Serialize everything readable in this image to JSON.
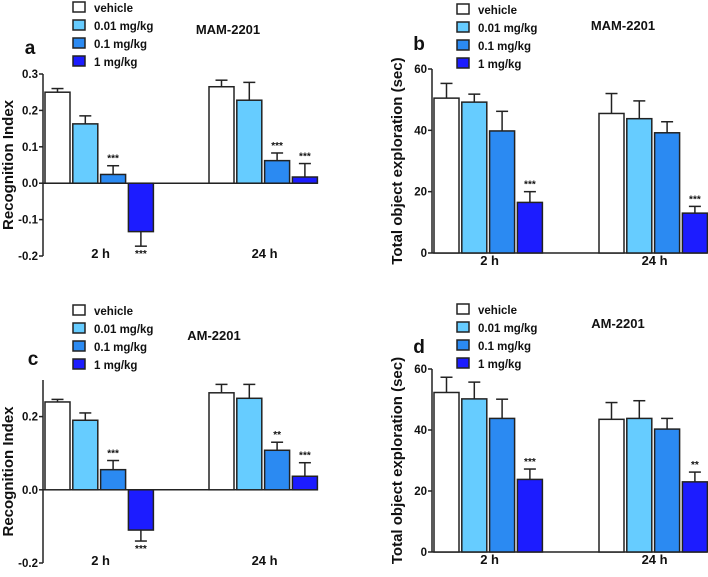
{
  "colors": {
    "vehicle": "#ffffff",
    "0.01 mg/kg": "#66ccff",
    "0.1 mg/kg": "#2b8af2",
    "1 mg/kg": "#1c1cff",
    "outline": "#222222"
  },
  "chart_data": [
    {
      "type": "bar",
      "panel_label": "a",
      "title": "MAM-2201",
      "ylabel": "Recognition Index",
      "categories": [
        "2 h",
        "24 h"
      ],
      "ylim": [
        -0.2,
        0.3
      ],
      "yticks": [
        -0.2,
        -0.1,
        0.0,
        0.1,
        0.2,
        0.3
      ],
      "tick_labels": [
        "-0.2",
        "-0.1",
        "0.0",
        "0.1",
        "0.2",
        "0.3"
      ],
      "legend": "top-left",
      "series": [
        {
          "name": "vehicle",
          "values": [
            0.25,
            0.265
          ],
          "error": [
            0.01,
            0.018
          ],
          "sig": [
            "",
            ""
          ]
        },
        {
          "name": "0.01 mg/kg",
          "values": [
            0.163,
            0.228
          ],
          "error": [
            0.022,
            0.049
          ],
          "sig": [
            "",
            ""
          ]
        },
        {
          "name": "0.1 mg/kg",
          "values": [
            0.024,
            0.062
          ],
          "error": [
            0.024,
            0.021
          ],
          "sig": [
            "***",
            "***"
          ]
        },
        {
          "name": "1 mg/kg",
          "values": [
            -0.133,
            0.017
          ],
          "error": [
            0.04,
            0.037
          ],
          "sig": [
            "***",
            "***"
          ]
        }
      ]
    },
    {
      "type": "bar",
      "panel_label": "b",
      "title": "MAM-2201",
      "ylabel": "Total object exploration (sec)",
      "categories": [
        "2 h",
        "24 h"
      ],
      "ylim": [
        0,
        60
      ],
      "yticks": [
        0,
        20,
        40,
        60
      ],
      "tick_labels": [
        "0",
        "20",
        "40",
        "60"
      ],
      "legend": "top-left",
      "series": [
        {
          "name": "vehicle",
          "values": [
            50.5,
            45.5
          ],
          "error": [
            4.8,
            6.5
          ],
          "sig": [
            "",
            ""
          ]
        },
        {
          "name": "0.01 mg/kg",
          "values": [
            49.2,
            43.8
          ],
          "error": [
            2.6,
            5.8
          ],
          "sig": [
            "",
            ""
          ]
        },
        {
          "name": "0.1 mg/kg",
          "values": [
            39.8,
            39.2
          ],
          "error": [
            6.4,
            3.6
          ],
          "sig": [
            "",
            ""
          ]
        },
        {
          "name": "1 mg/kg",
          "values": [
            16.5,
            13.0
          ],
          "error": [
            3.5,
            2.2
          ],
          "sig": [
            "***",
            "***"
          ]
        }
      ]
    },
    {
      "type": "bar",
      "panel_label": "c",
      "title": "AM-2201",
      "ylabel": "Recognition Index",
      "categories": [
        "2 h",
        "24 h"
      ],
      "ylim": [
        -0.2,
        0.3
      ],
      "yticks": [
        -0.2,
        0.0,
        0.2
      ],
      "tick_labels": [
        "-0.2",
        "0.0",
        "0.2"
      ],
      "legend": "top-left",
      "series": [
        {
          "name": "vehicle",
          "values": [
            0.24,
            0.265
          ],
          "error": [
            0.007,
            0.023
          ],
          "sig": [
            "",
            ""
          ]
        },
        {
          "name": "0.01 mg/kg",
          "values": [
            0.19,
            0.25
          ],
          "error": [
            0.02,
            0.038
          ],
          "sig": [
            "",
            ""
          ]
        },
        {
          "name": "0.1 mg/kg",
          "values": [
            0.055,
            0.108
          ],
          "error": [
            0.025,
            0.022
          ],
          "sig": [
            "***",
            "**"
          ]
        },
        {
          "name": "1 mg/kg",
          "values": [
            -0.11,
            0.037
          ],
          "error": [
            0.03,
            0.037
          ],
          "sig": [
            "***",
            "***"
          ]
        }
      ]
    },
    {
      "type": "bar",
      "panel_label": "d",
      "title": "AM-2201",
      "ylabel": "Total object exploration (sec)",
      "categories": [
        "2 h",
        "24 h"
      ],
      "ylim": [
        0,
        60
      ],
      "yticks": [
        0,
        20,
        40,
        60
      ],
      "tick_labels": [
        "0",
        "20",
        "40",
        "60"
      ],
      "legend": "top-left",
      "series": [
        {
          "name": "vehicle",
          "values": [
            52.3,
            43.5
          ],
          "error": [
            5.0,
            5.5
          ],
          "sig": [
            "",
            ""
          ]
        },
        {
          "name": "0.01 mg/kg",
          "values": [
            50.2,
            43.8
          ],
          "error": [
            5.5,
            5.8
          ],
          "sig": [
            "",
            ""
          ]
        },
        {
          "name": "0.1 mg/kg",
          "values": [
            43.8,
            40.3
          ],
          "error": [
            6.3,
            3.5
          ],
          "sig": [
            "",
            ""
          ]
        },
        {
          "name": "1 mg/kg",
          "values": [
            23.8,
            23.0
          ],
          "error": [
            3.4,
            3.2
          ],
          "sig": [
            "***",
            "**"
          ]
        }
      ]
    }
  ]
}
